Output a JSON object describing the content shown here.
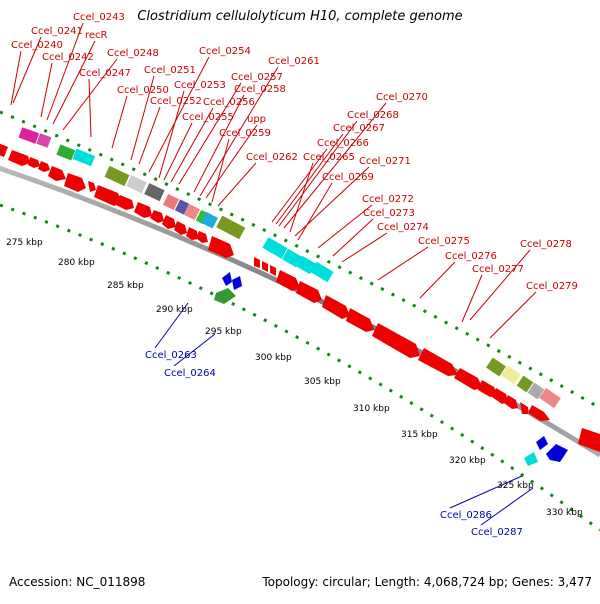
{
  "title": "Clostridium cellulolyticum H10, complete genome",
  "footer": {
    "accession": "Accession: NC_011898",
    "stats": "Topology: circular; Length: 4,068,724 bp; Genes: 3,477"
  },
  "colors": {
    "forward_cds": "#ee0000",
    "reverse_cds": "#0000dd",
    "backbone": "#888888",
    "tick": "#008800",
    "label_fwd": "#cc0000",
    "label_rev": "#0000aa"
  },
  "scale_labels": [
    "275 kbp",
    "280 kbp",
    "285 kbp",
    "290 kbp",
    "295 kbp",
    "300 kbp",
    "305 kbp",
    "310 kbp",
    "315 kbp",
    "320 kbp",
    "325 kbp",
    "330 kbp"
  ],
  "forward_gene_labels": [
    "Ccel_0243",
    "Ccel_0241",
    "recR",
    "Ccel_0240",
    "Ccel_0242",
    "Ccel_0248",
    "Ccel_0247",
    "Ccel_0254",
    "Ccel_0251",
    "Ccel_0250",
    "Ccel_0253",
    "Ccel_0257",
    "Ccel_0261",
    "Ccel_0252",
    "Ccel_0258",
    "Ccel_0256",
    "Ccel_0255",
    "upp",
    "Ccel_0259",
    "Ccel_0262",
    "Ccel_0270",
    "Ccel_0268",
    "Ccel_0267",
    "Ccel_0266",
    "Ccel_0265",
    "Ccel_0271",
    "Ccel_0269",
    "Ccel_0272",
    "Ccel_0273",
    "Ccel_0274",
    "Ccel_0275",
    "Ccel_0276",
    "Ccel_0278",
    "Ccel_0277",
    "Ccel_0279"
  ],
  "reverse_gene_labels": [
    "Ccel_0263",
    "Ccel_0264",
    "Ccel_0286",
    "Ccel_0287"
  ]
}
